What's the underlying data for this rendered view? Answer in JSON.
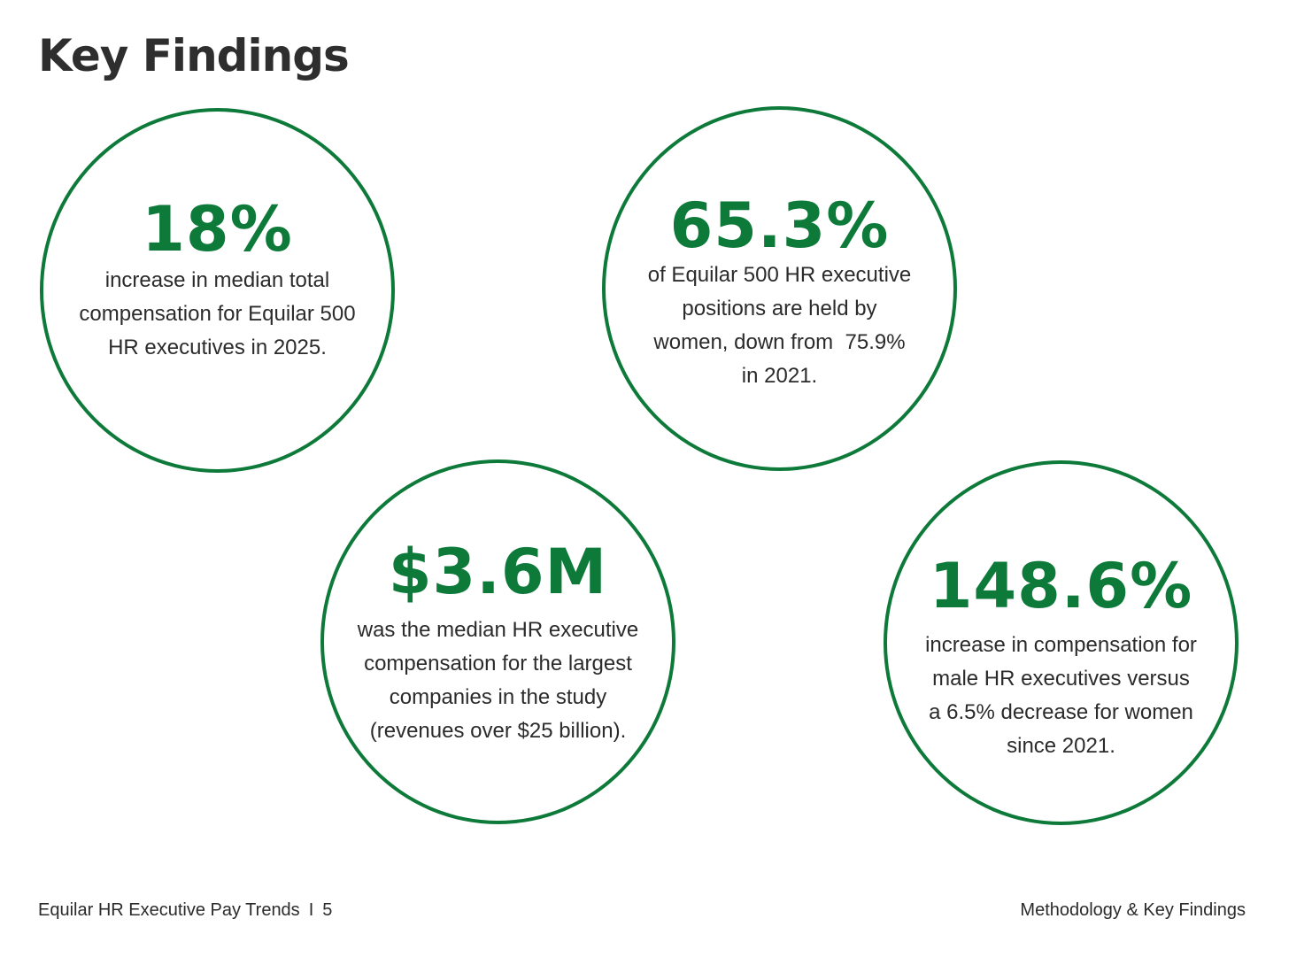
{
  "page": {
    "title": "Key Findings",
    "accent_color": "#0d7a3a"
  },
  "findings": [
    {
      "value": "18%",
      "lines": [
        "increase in median total",
        "compensation for Equilar 500",
        "HR executives in 2025."
      ]
    },
    {
      "value": "65.3%",
      "lines": [
        "of Equilar 500 HR executive",
        "positions are held by",
        "women, down from  75.9%",
        "in 2021."
      ]
    },
    {
      "value": "$3.6M",
      "lines": [
        "was the median HR executive",
        "compensation for the largest",
        "companies in the study",
        "(revenues over $25 billion)."
      ]
    },
    {
      "value": "148.6%",
      "lines": [
        "increase in compensation for",
        "male HR executives versus",
        "a 6.5% decrease for women",
        "since 2021."
      ]
    }
  ],
  "footer": {
    "publication": "Equilar HR Executive Pay Trends",
    "separator": "I",
    "page_number": "5",
    "section": "Methodology & Key Findings"
  }
}
